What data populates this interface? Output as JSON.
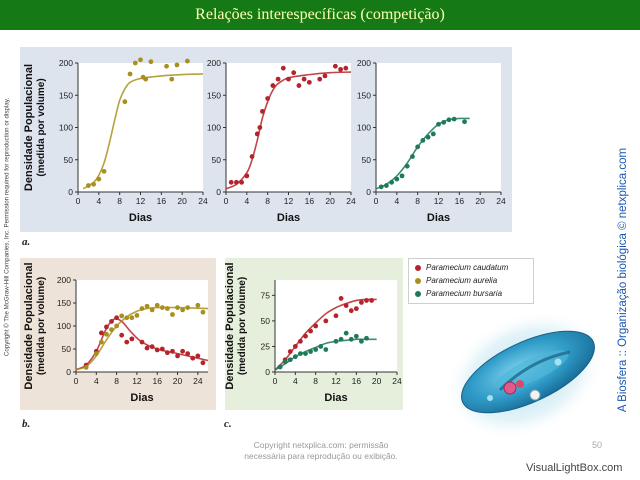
{
  "header": {
    "title": "Relações interespecíficas (competição)"
  },
  "side": {
    "copyright_left": "Copyright © The McGraw-Hill Companies, Inc. Permission required for reproduction or display.",
    "brand": "A Biosfera :: Organização biológica © netxplica.com"
  },
  "footer": {
    "line1": "Copyright netxplica.com: permissão",
    "line2": "necessária para reprodução ou exibição.",
    "page": "50",
    "watermark": "VisualLightBox.com"
  },
  "colors": {
    "caudatum": "#b5242b",
    "aurelia": "#a8901e",
    "bursaria": "#1f7a58",
    "header_bg": "#157a15"
  },
  "legend": [
    {
      "label": "Paramecium caudatum",
      "color": "#b5242b"
    },
    {
      "label": "Paramecium aurelia",
      "color": "#a8901e"
    },
    {
      "label": "Paramecium bursaria",
      "color": "#1f7a58"
    }
  ],
  "panel_labels": {
    "a": "a.",
    "b": "b.",
    "c": "c."
  },
  "ylabel_line1": "Densidade Populacional",
  "ylabel_line2": "(medida por volume)",
  "xlabel": "Dias",
  "chart_data": [
    {
      "id": "a1",
      "type": "scatter",
      "xlabel": "Dias",
      "ylabel": "Densidade Populacional (medida por volume)",
      "xlim": [
        0,
        24
      ],
      "ylim": [
        0,
        200
      ],
      "xticks": [
        0,
        4,
        8,
        12,
        16,
        20,
        24
      ],
      "yticks": [
        0,
        50,
        100,
        150,
        200
      ],
      "series": [
        {
          "species": "aurelia",
          "points": [
            [
              2,
              10
            ],
            [
              3,
              12
            ],
            [
              4,
              20
            ],
            [
              5,
              32
            ],
            [
              9,
              140
            ],
            [
              10,
              183
            ],
            [
              11,
              200
            ],
            [
              12,
              205
            ],
            [
              12.5,
              178
            ],
            [
              13,
              175
            ],
            [
              14,
              202
            ],
            [
              17,
              195
            ],
            [
              18,
              175
            ],
            [
              19,
              197
            ],
            [
              21,
              203
            ]
          ],
          "curve": [
            [
              1,
              5
            ],
            [
              3,
              15
            ],
            [
              4,
              26
            ],
            [
              5,
              45
            ],
            [
              6,
              75
            ],
            [
              7,
              110
            ],
            [
              8,
              142
            ],
            [
              9,
              160
            ],
            [
              10,
              170
            ],
            [
              12,
              176
            ],
            [
              16,
              180
            ],
            [
              20,
              182
            ],
            [
              24,
              183
            ]
          ]
        }
      ]
    },
    {
      "id": "a2",
      "type": "scatter",
      "xlabel": "Dias",
      "ylabel": "",
      "xlim": [
        0,
        24
      ],
      "ylim": [
        0,
        200
      ],
      "xticks": [
        0,
        4,
        8,
        12,
        16,
        20,
        24
      ],
      "yticks": [
        0,
        50,
        100,
        150,
        200
      ],
      "series": [
        {
          "species": "caudatum",
          "points": [
            [
              1,
              15
            ],
            [
              2,
              15
            ],
            [
              3,
              15
            ],
            [
              4,
              25
            ],
            [
              5,
              55
            ],
            [
              6,
              90
            ],
            [
              6.5,
              100
            ],
            [
              7,
              125
            ],
            [
              8,
              145
            ],
            [
              9,
              165
            ],
            [
              10,
              175
            ],
            [
              11,
              192
            ],
            [
              12,
              175
            ],
            [
              13,
              185
            ],
            [
              14,
              165
            ],
            [
              15,
              175
            ],
            [
              16,
              170
            ],
            [
              18,
              175
            ],
            [
              19,
              180
            ],
            [
              21,
              195
            ],
            [
              22,
              190
            ],
            [
              23,
              192
            ]
          ],
          "curve": [
            [
              0,
              5
            ],
            [
              2,
              12
            ],
            [
              4,
              30
            ],
            [
              5,
              50
            ],
            [
              6,
              80
            ],
            [
              7,
              115
            ],
            [
              8,
              140
            ],
            [
              9,
              158
            ],
            [
              10,
              168
            ],
            [
              12,
              177
            ],
            [
              16,
              182
            ],
            [
              20,
              185
            ],
            [
              24,
              186
            ]
          ]
        }
      ]
    },
    {
      "id": "a3",
      "type": "scatter",
      "xlabel": "Dias",
      "ylabel": "",
      "xlim": [
        0,
        24
      ],
      "ylim": [
        0,
        200
      ],
      "xticks": [
        0,
        4,
        8,
        12,
        16,
        20,
        24
      ],
      "yticks": [
        0,
        50,
        100,
        150,
        200
      ],
      "series": [
        {
          "species": "bursaria",
          "points": [
            [
              1,
              8
            ],
            [
              2,
              10
            ],
            [
              3,
              15
            ],
            [
              4,
              20
            ],
            [
              5,
              25
            ],
            [
              6,
              40
            ],
            [
              7,
              55
            ],
            [
              8,
              70
            ],
            [
              9,
              80
            ],
            [
              10,
              85
            ],
            [
              11,
              90
            ],
            [
              12,
              105
            ],
            [
              13,
              108
            ],
            [
              14,
              112
            ],
            [
              15,
              113
            ],
            [
              17,
              109
            ]
          ],
          "curve": [
            [
              0,
              5
            ],
            [
              2,
              12
            ],
            [
              4,
              25
            ],
            [
              6,
              45
            ],
            [
              8,
              70
            ],
            [
              10,
              90
            ],
            [
              12,
              105
            ],
            [
              14,
              112
            ],
            [
              16,
              114
            ],
            [
              18,
              114
            ]
          ]
        }
      ]
    },
    {
      "id": "b",
      "type": "scatter",
      "xlabel": "Dias",
      "ylabel": "Densidade Populacional (medida por volume)",
      "xlim": [
        0,
        26
      ],
      "ylim": [
        0,
        200
      ],
      "xticks": [
        0,
        4,
        8,
        12,
        16,
        20,
        24
      ],
      "yticks": [
        0,
        50,
        100,
        150,
        200
      ],
      "series": [
        {
          "species": "caudatum",
          "points": [
            [
              2,
              15
            ],
            [
              4,
              45
            ],
            [
              5,
              85
            ],
            [
              6,
              98
            ],
            [
              7,
              110
            ],
            [
              8,
              118
            ],
            [
              9,
              80
            ],
            [
              10,
              65
            ],
            [
              11,
              72
            ],
            [
              13,
              65
            ],
            [
              14,
              52
            ],
            [
              15,
              55
            ],
            [
              16,
              48
            ],
            [
              17,
              50
            ],
            [
              18,
              42
            ],
            [
              19,
              45
            ],
            [
              20,
              35
            ],
            [
              21,
              45
            ],
            [
              22,
              40
            ],
            [
              23,
              30
            ],
            [
              24,
              35
            ],
            [
              25,
              20
            ]
          ],
          "curve": [
            [
              0,
              5
            ],
            [
              2,
              15
            ],
            [
              4,
              45
            ],
            [
              6,
              95
            ],
            [
              7.5,
              115
            ],
            [
              9,
              110
            ],
            [
              11,
              85
            ],
            [
              13,
              65
            ],
            [
              16,
              50
            ],
            [
              20,
              40
            ],
            [
              24,
              30
            ],
            [
              26,
              25
            ]
          ]
        },
        {
          "species": "aurelia",
          "points": [
            [
              2,
              10
            ],
            [
              4,
              40
            ],
            [
              5,
              65
            ],
            [
              6,
              82
            ],
            [
              7,
              92
            ],
            [
              8,
              100
            ],
            [
              9,
              122
            ],
            [
              10,
              118
            ],
            [
              11,
              118
            ],
            [
              12,
              123
            ],
            [
              13,
              138
            ],
            [
              14,
              143
            ],
            [
              15,
              135
            ],
            [
              16,
              145
            ],
            [
              17,
              140
            ],
            [
              18,
              138
            ],
            [
              19,
              125
            ],
            [
              20,
              140
            ],
            [
              21,
              135
            ],
            [
              22,
              140
            ],
            [
              24,
              145
            ],
            [
              25,
              130
            ]
          ],
          "curve": [
            [
              0,
              5
            ],
            [
              2,
              12
            ],
            [
              4,
              35
            ],
            [
              6,
              70
            ],
            [
              8,
              100
            ],
            [
              10,
              120
            ],
            [
              12,
              132
            ],
            [
              14,
              138
            ],
            [
              16,
              140
            ],
            [
              20,
              140
            ],
            [
              26,
              138
            ]
          ]
        }
      ]
    },
    {
      "id": "c",
      "type": "scatter",
      "xlabel": "Dias",
      "ylabel": "Densidade Populacional (medida por volume)",
      "xlim": [
        0,
        24
      ],
      "ylim": [
        0,
        90
      ],
      "xticks": [
        0,
        4,
        8,
        12,
        16,
        20,
        24
      ],
      "yticks": [
        0,
        25,
        50,
        75
      ],
      "series": [
        {
          "species": "caudatum",
          "points": [
            [
              1,
              5
            ],
            [
              2,
              12
            ],
            [
              3,
              20
            ],
            [
              4,
              25
            ],
            [
              5,
              30
            ],
            [
              6,
              35
            ],
            [
              7,
              40
            ],
            [
              8,
              45
            ],
            [
              10,
              50
            ],
            [
              12,
              55
            ],
            [
              13,
              72
            ],
            [
              14,
              65
            ],
            [
              15,
              60
            ],
            [
              16,
              62
            ],
            [
              17,
              68
            ],
            [
              18,
              70
            ],
            [
              19,
              70
            ]
          ],
          "curve": [
            [
              0,
              2
            ],
            [
              2,
              12
            ],
            [
              4,
              25
            ],
            [
              6,
              38
            ],
            [
              8,
              48
            ],
            [
              10,
              57
            ],
            [
              12,
              63
            ],
            [
              14,
              67
            ],
            [
              16,
              70
            ],
            [
              18,
              71
            ],
            [
              20,
              71
            ]
          ]
        },
        {
          "species": "bursaria",
          "points": [
            [
              1,
              5
            ],
            [
              2,
              10
            ],
            [
              3,
              12
            ],
            [
              4,
              15
            ],
            [
              5,
              18
            ],
            [
              6,
              18
            ],
            [
              7,
              20
            ],
            [
              8,
              22
            ],
            [
              9,
              25
            ],
            [
              10,
              22
            ],
            [
              12,
              30
            ],
            [
              13,
              32
            ],
            [
              14,
              38
            ],
            [
              15,
              32
            ],
            [
              16,
              35
            ],
            [
              17,
              30
            ],
            [
              18,
              33
            ]
          ],
          "curve": [
            [
              0,
              2
            ],
            [
              2,
              8
            ],
            [
              4,
              15
            ],
            [
              6,
              20
            ],
            [
              8,
              24
            ],
            [
              10,
              28
            ],
            [
              12,
              30
            ],
            [
              14,
              31
            ],
            [
              16,
              32
            ],
            [
              18,
              32
            ],
            [
              20,
              32
            ]
          ]
        }
      ]
    }
  ]
}
